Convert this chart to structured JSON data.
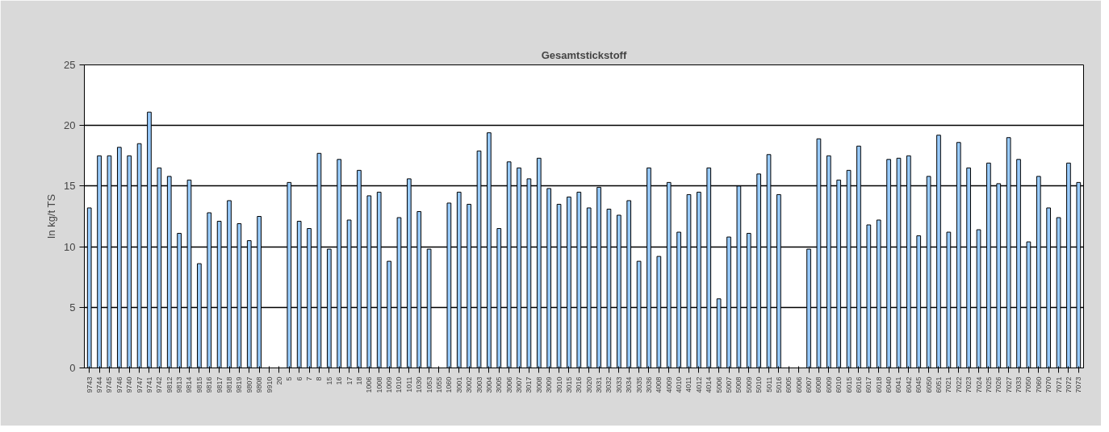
{
  "chart_data": {
    "type": "bar",
    "title": "Gesamtstickstoff",
    "ylabel": "In kg/t TS",
    "categories": [
      "9743",
      "9744",
      "9745",
      "9746",
      "9740",
      "9747",
      "9741",
      "9742",
      "9812",
      "9813",
      "9814",
      "9815",
      "9816",
      "9817",
      "9818",
      "9819",
      "9807",
      "9808",
      "9910",
      "20",
      "5",
      "6",
      "7",
      "8",
      "15",
      "16",
      "17",
      "18",
      "1006",
      "1008",
      "1009",
      "1010",
      "1011",
      "1030",
      "1053",
      "1055",
      "1060",
      "3001",
      "3002",
      "3003",
      "3004",
      "3005",
      "3006",
      "3007",
      "3017",
      "3008",
      "3009",
      "3010",
      "3015",
      "3016",
      "3020",
      "3031",
      "3032",
      "3033",
      "3034",
      "3035",
      "3036",
      "4008",
      "4009",
      "4010",
      "4011",
      "4012",
      "4014",
      "5006",
      "5007",
      "5008",
      "5009",
      "5010",
      "5011",
      "5016",
      "6005",
      "6006",
      "6007",
      "6008",
      "6009",
      "6010",
      "6015",
      "6016",
      "6017",
      "6018",
      "6040",
      "6041",
      "6042",
      "6045",
      "6050",
      "6051",
      "7021",
      "7022",
      "7023",
      "7024",
      "7025",
      "7026",
      "7027",
      "7033",
      "7050",
      "7060",
      "7070",
      "7071",
      "7072",
      "7073"
    ],
    "values": [
      13.2,
      17.5,
      17.5,
      18.2,
      17.5,
      18.5,
      21.1,
      16.5,
      15.8,
      11.1,
      15.5,
      8.6,
      12.8,
      12.1,
      13.8,
      11.9,
      10.5,
      12.5,
      null,
      null,
      15.3,
      12.1,
      11.5,
      17.7,
      9.8,
      17.2,
      12.2,
      16.3,
      14.2,
      14.5,
      8.8,
      12.4,
      15.6,
      12.9,
      9.8,
      null,
      13.6,
      14.5,
      13.5,
      17.9,
      19.4,
      11.5,
      17.0,
      16.5,
      15.6,
      17.3,
      14.8,
      13.5,
      14.1,
      14.5,
      13.2,
      14.9,
      13.1,
      12.6,
      13.8,
      8.8,
      16.5,
      9.2,
      15.3,
      11.2,
      14.3,
      14.5,
      16.5,
      5.7,
      10.8,
      15.0,
      11.1,
      16.0,
      17.6,
      14.3,
      null,
      null,
      9.8,
      18.9,
      17.5,
      15.5,
      16.3,
      18.3,
      11.8,
      12.2,
      17.2,
      17.3,
      17.5,
      10.9,
      15.8,
      19.2,
      11.2,
      18.6,
      16.5,
      11.4,
      16.9,
      15.2,
      19.0,
      17.2,
      10.4,
      15.8,
      13.2,
      12.4,
      16.9,
      15.3
    ],
    "color": "#99ccff",
    "ylim": [
      0,
      25
    ],
    "yticks": [
      0,
      5,
      10,
      15,
      20,
      25
    ],
    "grid": "y"
  }
}
